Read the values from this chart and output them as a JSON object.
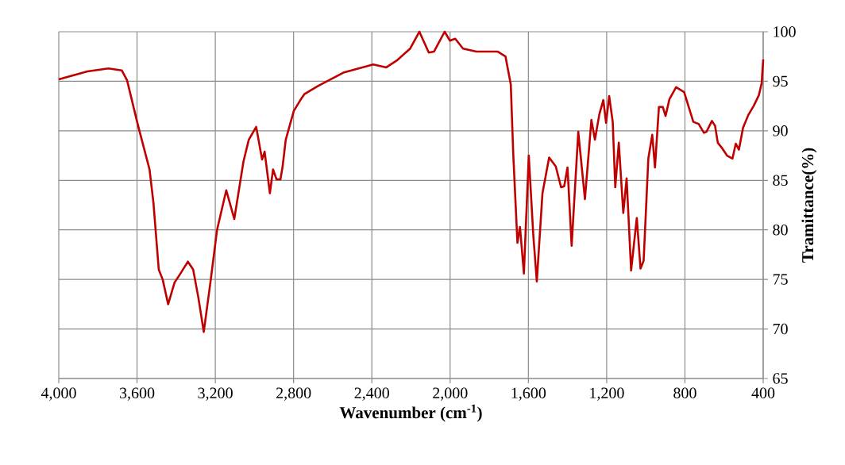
{
  "chart_data": {
    "type": "line",
    "xlabel": "Wavenumber (cm$^{-1}$)",
    "ylabel": "Tramittance(%)",
    "xlim": [
      4000,
      400
    ],
    "ylim": [
      65,
      100
    ],
    "xticks": [
      {
        "value": 4000,
        "label": "4,000"
      },
      {
        "value": 3600,
        "label": "3,600"
      },
      {
        "value": 3200,
        "label": "3,200"
      },
      {
        "value": 2800,
        "label": "2,800"
      },
      {
        "value": 2400,
        "label": "2,400"
      },
      {
        "value": 2000,
        "label": "2,000"
      },
      {
        "value": 1600,
        "label": "1,600"
      },
      {
        "value": 1200,
        "label": "1,200"
      },
      800,
      400
    ],
    "yticks": [
      65,
      70,
      75,
      80,
      85,
      90,
      95,
      100
    ],
    "grid": true,
    "marker": "none",
    "line_style": "solid",
    "series": [
      {
        "color": "#c00000",
        "x": [
          4000,
          3854,
          3746,
          3678,
          3651,
          3597,
          3536,
          3516,
          3489,
          3469,
          3441,
          3408,
          3381,
          3340,
          3313,
          3286,
          3259,
          3225,
          3191,
          3144,
          3103,
          3056,
          3029,
          2991,
          2961,
          2948,
          2921,
          2905,
          2887,
          2867,
          2856,
          2840,
          2799,
          2759,
          2745,
          2677,
          2542,
          2393,
          2326,
          2272,
          2204,
          2157,
          2109,
          2082,
          2028,
          2001,
          1974,
          1934,
          1866,
          1758,
          1717,
          1690,
          1677,
          1656,
          1643,
          1623,
          1598,
          1575,
          1557,
          1528,
          1494,
          1460,
          1433,
          1417,
          1400,
          1379,
          1345,
          1311,
          1278,
          1260,
          1237,
          1217,
          1203,
          1187,
          1169,
          1156,
          1138,
          1115,
          1098,
          1075,
          1046,
          1027,
          1011,
          987,
          967,
          953,
          933,
          913,
          899,
          879,
          845,
          804,
          757,
          730,
          703,
          690,
          662,
          646,
          632,
          612,
          585,
          557,
          540,
          524,
          503,
          476,
          449,
          422,
          408,
          400
        ],
        "values": [
          95.2,
          96.0,
          96.3,
          96.1,
          95.1,
          90.7,
          86.1,
          82.7,
          76.0,
          75.0,
          72.5,
          74.7,
          75.5,
          76.8,
          76.0,
          73.1,
          69.7,
          74.7,
          80.0,
          84.0,
          81.1,
          86.9,
          89.1,
          90.4,
          87.1,
          87.9,
          83.7,
          86.1,
          85.1,
          85.1,
          86.4,
          89.1,
          92.0,
          93.3,
          93.7,
          94.5,
          95.9,
          96.7,
          96.4,
          97.1,
          98.3,
          100,
          97.9,
          98,
          100,
          99.1,
          99.3,
          98.3,
          98,
          98,
          97.5,
          94.7,
          87.5,
          78.7,
          80.3,
          75.6,
          87.5,
          79.5,
          74.8,
          83.7,
          87.3,
          86.4,
          84.3,
          84.4,
          86.3,
          78.4,
          89.9,
          83.1,
          91.1,
          89.1,
          91.7,
          93.1,
          90.8,
          93.5,
          90.9,
          84.3,
          88.8,
          81.7,
          85.2,
          75.9,
          81.2,
          76.1,
          76.9,
          87.2,
          89.6,
          86.3,
          92.4,
          92.4,
          91.5,
          93.2,
          94.4,
          93.9,
          90.9,
          90.7,
          89.8,
          89.9,
          91.0,
          90.5,
          88.8,
          88.3,
          87.5,
          87.2,
          88.7,
          88.1,
          90.3,
          91.6,
          92.5,
          93.6,
          94.8,
          97.2
        ]
      }
    ]
  }
}
